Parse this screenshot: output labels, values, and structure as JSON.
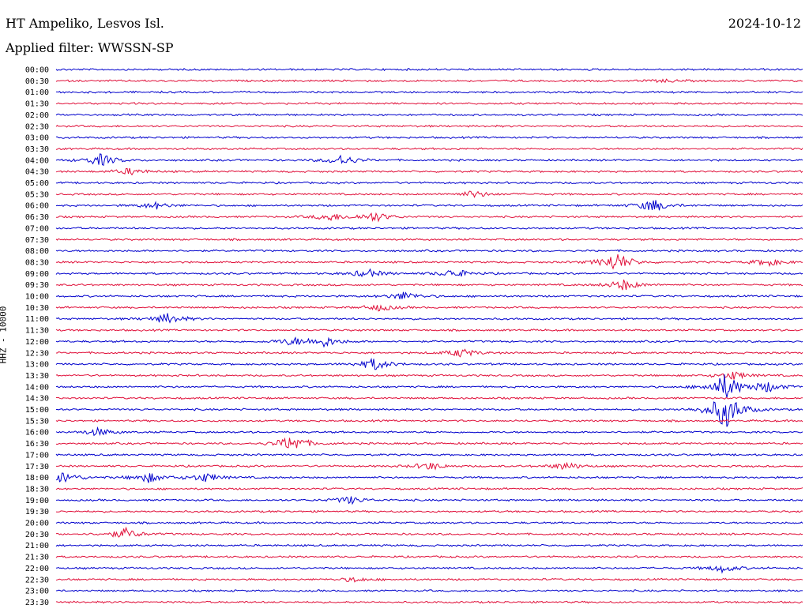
{
  "header": {
    "station": "HT Ampeliko, Lesvos Isl.",
    "date": "2024-10-12",
    "filter": "Applied filter: WWSSN-SP"
  },
  "chart_data": {
    "type": "line",
    "ylabel": "HHZ - 10000",
    "y": [
      "00:00",
      "00:30",
      "01:00",
      "01:30",
      "02:00",
      "02:30",
      "03:00",
      "03:30",
      "04:00",
      "04:30",
      "05:00",
      "05:30",
      "06:00",
      "06:30",
      "07:00",
      "07:30",
      "08:00",
      "08:30",
      "09:00",
      "09:30",
      "10:00",
      "10:30",
      "11:00",
      "11:30",
      "12:00",
      "12:30",
      "13:00",
      "13:30",
      "14:00",
      "14:30",
      "15:00",
      "15:30",
      "16:00",
      "16:30",
      "17:00",
      "17:30",
      "18:00",
      "18:30",
      "19:00",
      "19:30",
      "20:00",
      "20:30",
      "21:00",
      "21:30",
      "22:00",
      "22:30",
      "23:00",
      "23:30"
    ],
    "trace_colors": [
      "#0000cc",
      "#e0103a"
    ],
    "events": [
      {
        "line": "00:30",
        "minute": 24.5,
        "amplitude": 0.12
      },
      {
        "line": "04:00",
        "minute": 1.8,
        "amplitude": 0.55
      },
      {
        "line": "04:00",
        "minute": 11.5,
        "amplitude": 0.5
      },
      {
        "line": "04:30",
        "minute": 3.0,
        "amplitude": 0.3
      },
      {
        "line": "05:30",
        "minute": 16.8,
        "amplitude": 0.3
      },
      {
        "line": "06:00",
        "minute": 24.0,
        "amplitude": 0.6
      },
      {
        "line": "06:00",
        "minute": 4.0,
        "amplitude": 0.3
      },
      {
        "line": "06:30",
        "minute": 11.0,
        "amplitude": 0.35
      },
      {
        "line": "06:30",
        "minute": 12.8,
        "amplitude": 0.45
      },
      {
        "line": "08:30",
        "minute": 22.5,
        "amplitude": 0.9
      },
      {
        "line": "08:30",
        "minute": 28.6,
        "amplitude": 0.35
      },
      {
        "line": "09:00",
        "minute": 12.5,
        "amplitude": 0.4
      },
      {
        "line": "09:00",
        "minute": 16.0,
        "amplitude": 0.4
      },
      {
        "line": "09:30",
        "minute": 22.8,
        "amplitude": 0.5
      },
      {
        "line": "10:00",
        "minute": 14.0,
        "amplitude": 0.4
      },
      {
        "line": "10:30",
        "minute": 13.0,
        "amplitude": 0.3
      },
      {
        "line": "11:00",
        "minute": 4.5,
        "amplitude": 0.5
      },
      {
        "line": "12:00",
        "minute": 10.8,
        "amplitude": 0.45
      },
      {
        "line": "12:00",
        "minute": 9.5,
        "amplitude": 0.35
      },
      {
        "line": "12:30",
        "minute": 16.3,
        "amplitude": 0.4
      },
      {
        "line": "13:00",
        "minute": 12.8,
        "amplitude": 0.55
      },
      {
        "line": "13:30",
        "minute": 27.2,
        "amplitude": 0.4
      },
      {
        "line": "14:00",
        "minute": 26.9,
        "amplitude": 1.2
      },
      {
        "line": "14:00",
        "minute": 28.6,
        "amplitude": 0.45
      },
      {
        "line": "15:00",
        "minute": 26.9,
        "amplitude": 1.8
      },
      {
        "line": "16:00",
        "minute": 1.7,
        "amplitude": 0.35
      },
      {
        "line": "16:30",
        "minute": 9.5,
        "amplitude": 0.8
      },
      {
        "line": "17:30",
        "minute": 15.0,
        "amplitude": 0.35
      },
      {
        "line": "17:30",
        "minute": 20.5,
        "amplitude": 0.35
      },
      {
        "line": "18:00",
        "minute": 0.3,
        "amplitude": 0.5
      },
      {
        "line": "18:00",
        "minute": 3.7,
        "amplitude": 0.45
      },
      {
        "line": "18:00",
        "minute": 6.0,
        "amplitude": 0.4
      },
      {
        "line": "19:00",
        "minute": 11.8,
        "amplitude": 0.35
      },
      {
        "line": "20:30",
        "minute": 2.8,
        "amplitude": 0.5
      },
      {
        "line": "22:00",
        "minute": 26.8,
        "amplitude": 0.35
      },
      {
        "line": "22:30",
        "minute": 12.0,
        "amplitude": 0.2
      }
    ]
  }
}
